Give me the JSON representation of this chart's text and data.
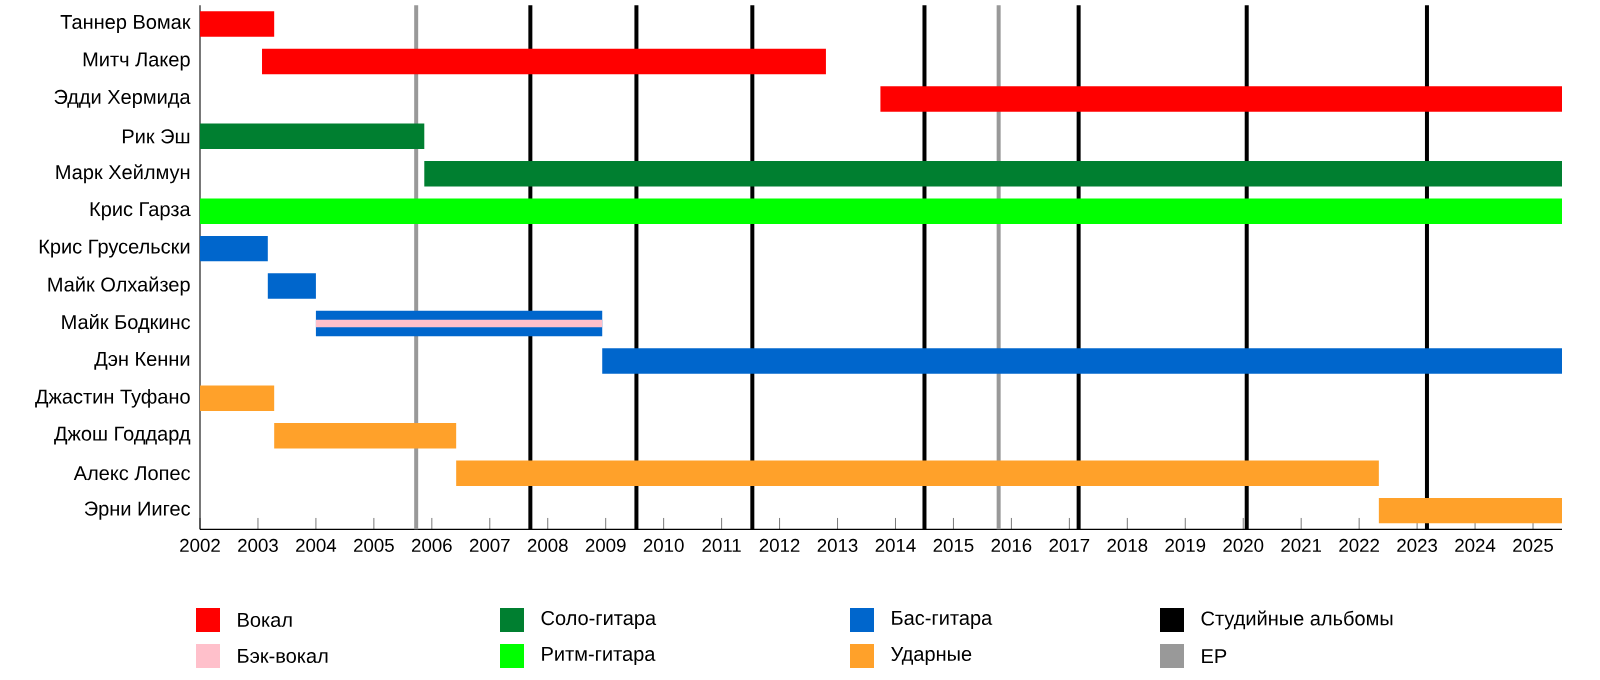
{
  "chart_data": {
    "type": "bar",
    "orientation": "horizontal",
    "categories": [
      "Таннер Вомак",
      "Митч Лакер",
      "Эдди Хермида",
      "Рик Эш",
      "Марк Хейлмун",
      "Крис Гарза",
      "Крис Грусельски",
      "Майк Олхайзер",
      "Майк Бодкинс",
      "Дэн Кенни",
      "Джастин Туфано",
      "Джош Годдард",
      "Алекс Лопес",
      "Эрни Иигес"
    ],
    "series": [
      {
        "name": "Вокал",
        "color": "#ff0000",
        "base": [
          2002,
          2003.07,
          2013.74,
          null,
          null,
          null,
          null,
          null,
          null,
          null,
          null,
          null,
          null,
          null
        ],
        "values": [
          1.28,
          9.73,
          11.76,
          null,
          null,
          null,
          null,
          null,
          null,
          null,
          null,
          null,
          null,
          null
        ]
      },
      {
        "name": "Бэк-вокал",
        "color": "#ffc0cb",
        "base": [
          null,
          null,
          null,
          null,
          null,
          null,
          null,
          null,
          2004,
          null,
          null,
          null,
          null,
          null
        ],
        "values": [
          null,
          null,
          null,
          null,
          null,
          null,
          null,
          null,
          4.94,
          null,
          null,
          null,
          null,
          null
        ]
      },
      {
        "name": "Соло-гитара",
        "color": "#007f30",
        "base": [
          null,
          null,
          null,
          2002,
          2005.87,
          null,
          null,
          null,
          null,
          null,
          null,
          null,
          null,
          null
        ],
        "values": [
          null,
          null,
          null,
          3.87,
          19.63,
          null,
          null,
          null,
          null,
          null,
          null,
          null,
          null,
          null
        ]
      },
      {
        "name": "Ритм-гитара",
        "color": "#00ff00",
        "base": [
          null,
          null,
          null,
          null,
          null,
          2002,
          null,
          null,
          null,
          null,
          null,
          null,
          null,
          null
        ],
        "values": [
          null,
          null,
          null,
          null,
          null,
          23.5,
          null,
          null,
          null,
          null,
          null,
          null,
          null,
          null
        ]
      },
      {
        "name": "Бас-гитара",
        "color": "#0066cc",
        "base": [
          null,
          null,
          null,
          null,
          null,
          null,
          2002,
          2003.17,
          2004,
          2008.94,
          null,
          null,
          null,
          null
        ],
        "values": [
          null,
          null,
          null,
          null,
          null,
          null,
          1.17,
          0.83,
          4.94,
          16.56,
          null,
          null,
          null,
          null
        ]
      },
      {
        "name": "Ударные",
        "color": "#ffa12a",
        "base": [
          null,
          null,
          null,
          null,
          null,
          null,
          null,
          null,
          null,
          null,
          2002,
          2003.28,
          2006.42,
          2022.34
        ],
        "values": [
          null,
          null,
          null,
          null,
          null,
          null,
          null,
          null,
          null,
          null,
          1.28,
          3.14,
          15.92,
          3.16
        ]
      }
    ],
    "ref_lines": [
      {
        "axis": "x",
        "value": 2007.7,
        "label": "Студийные альбомы",
        "color": "#000000"
      },
      {
        "axis": "x",
        "value": 2009.53,
        "color": "#000000"
      },
      {
        "axis": "x",
        "value": 2011.53,
        "color": "#000000"
      },
      {
        "axis": "x",
        "value": 2014.5,
        "color": "#000000"
      },
      {
        "axis": "x",
        "value": 2017.16,
        "color": "#000000"
      },
      {
        "axis": "x",
        "value": 2020.06,
        "color": "#000000"
      },
      {
        "axis": "x",
        "value": 2023.17,
        "color": "#000000"
      },
      {
        "axis": "x",
        "value": 2005.73,
        "label": "EP",
        "color": "#999999"
      },
      {
        "axis": "x",
        "value": 2015.78,
        "color": "#999999"
      }
    ],
    "xlim": [
      2002,
      2025.5
    ],
    "xticks": [
      2002,
      2003,
      2004,
      2005,
      2006,
      2007,
      2008,
      2009,
      2010,
      2011,
      2012,
      2013,
      2014,
      2015,
      2016,
      2017,
      2018,
      2019,
      2020,
      2021,
      2022,
      2023,
      2024,
      2025
    ],
    "legend": "bottom"
  }
}
